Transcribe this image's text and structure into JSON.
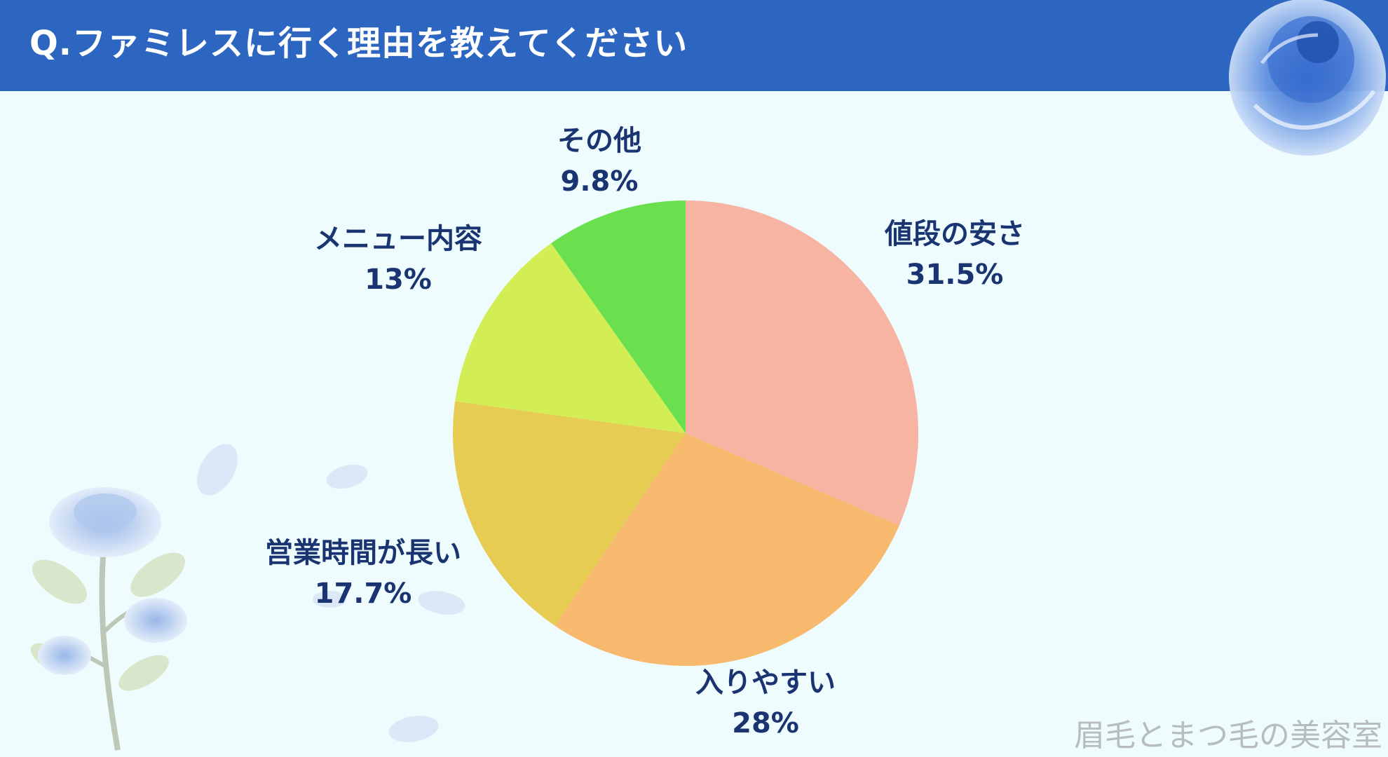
{
  "header": {
    "title": "Q.ファミレスに行く理由を教えてください"
  },
  "chart_data": {
    "type": "pie",
    "title": "Q.ファミレスに行く理由を教えてください",
    "start_angle_deg": 0,
    "direction": "clockwise",
    "slices": [
      {
        "label": "値段の安さ",
        "value": 31.5,
        "value_label": "31.5%",
        "color": "#f8b4a3"
      },
      {
        "label": "入りやすい",
        "value": 28,
        "value_label": "28%",
        "color": "#f6b96e"
      },
      {
        "label": "営業時間が長い",
        "value": 17.7,
        "value_label": "17.7%",
        "color": "#e6cc52"
      },
      {
        "label": "メニュー内容",
        "value": 13,
        "value_label": "13%",
        "color": "#d3ee55"
      },
      {
        "label": "その他",
        "value": 9.8,
        "value_label": "9.8%",
        "color": "#6ae04f"
      }
    ]
  },
  "watermark": {
    "text": "眉毛とまつ毛の美容室"
  },
  "colors": {
    "header": "#2c66c1",
    "background": "#eefcfd",
    "label": "#1a3472"
  }
}
